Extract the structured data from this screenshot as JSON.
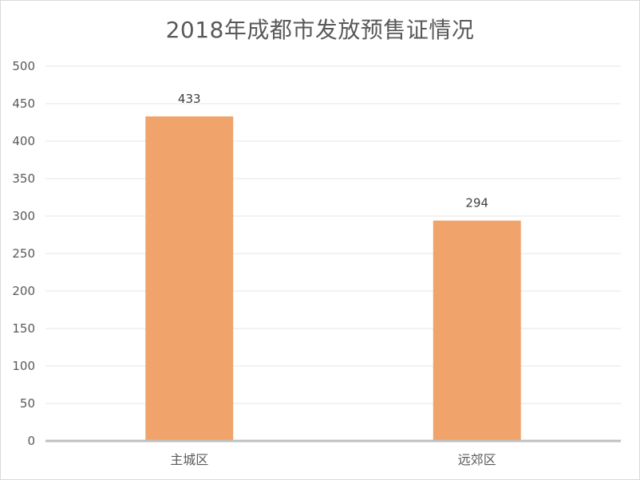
{
  "chart_data": {
    "type": "bar",
    "title": "2018年成都市发放预售证情况",
    "categories": [
      "主城区",
      "远郊区"
    ],
    "series": [
      {
        "values": [
          433,
          294
        ],
        "color": "#F0A46C"
      }
    ],
    "ylim": [
      0,
      500
    ],
    "yticks": [
      0,
      50,
      100,
      150,
      200,
      250,
      300,
      350,
      400,
      450,
      500
    ],
    "grid": true,
    "legend": "none",
    "data_labels": [
      "433",
      "294"
    ],
    "colors": {
      "bar": "#F0A46C",
      "grid": "#e6e6e6",
      "axis": "#bfbfbf",
      "text": "#595959"
    }
  }
}
